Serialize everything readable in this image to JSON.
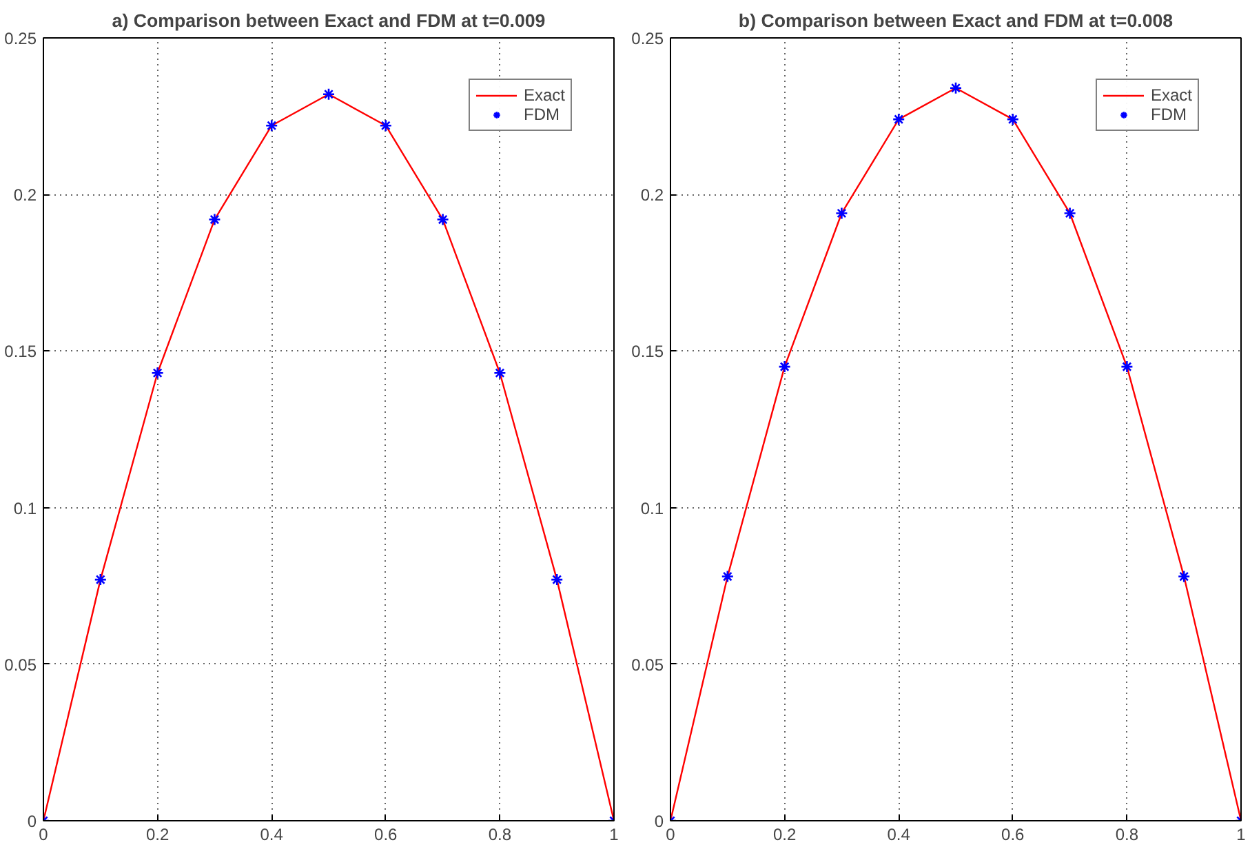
{
  "chart_data": [
    {
      "type": "line",
      "title": "a) Comparison between Exact and FDM at t=0.009",
      "x": [
        0,
        0.1,
        0.2,
        0.3,
        0.4,
        0.5,
        0.6,
        0.7,
        0.8,
        0.9,
        1
      ],
      "series": [
        {
          "name": "Exact",
          "color": "#ff0000",
          "marker": "none",
          "line_style": "solid",
          "values": [
            0,
            0.077,
            0.143,
            0.192,
            0.222,
            0.232,
            0.222,
            0.192,
            0.143,
            0.077,
            0
          ]
        },
        {
          "name": "FDM",
          "type": "scatter",
          "color": "#0000ff",
          "marker": "cross",
          "values": [
            0,
            0.077,
            0.143,
            0.192,
            0.222,
            0.232,
            0.222,
            0.192,
            0.143,
            0.077,
            0
          ]
        }
      ],
      "xlim": [
        0,
        1
      ],
      "ylim": [
        0,
        0.25
      ],
      "xticks": [
        0,
        0.2,
        0.4,
        0.6,
        0.8,
        1
      ],
      "yticks": [
        0,
        0.05,
        0.1,
        0.15,
        0.2,
        0.25
      ],
      "grid": true,
      "legend": "top right"
    },
    {
      "type": "line",
      "title": "b) Comparison between Exact and FDM at t=0.008",
      "x": [
        0,
        0.1,
        0.2,
        0.3,
        0.4,
        0.5,
        0.6,
        0.7,
        0.8,
        0.9,
        1
      ],
      "series": [
        {
          "name": "Exact",
          "color": "#ff0000",
          "marker": "none",
          "line_style": "solid",
          "values": [
            0,
            0.078,
            0.145,
            0.194,
            0.224,
            0.234,
            0.224,
            0.194,
            0.145,
            0.078,
            0
          ]
        },
        {
          "name": "FDM",
          "type": "scatter",
          "color": "#0000ff",
          "marker": "cross",
          "values": [
            0,
            0.078,
            0.145,
            0.194,
            0.224,
            0.234,
            0.224,
            0.194,
            0.145,
            0.078,
            0
          ]
        }
      ],
      "xlim": [
        0,
        1
      ],
      "ylim": [
        0,
        0.25
      ],
      "xticks": [
        0,
        0.2,
        0.4,
        0.6,
        0.8,
        1
      ],
      "yticks": [
        0,
        0.05,
        0.1,
        0.15,
        0.2,
        0.25
      ],
      "grid": true,
      "legend": "top right"
    }
  ]
}
